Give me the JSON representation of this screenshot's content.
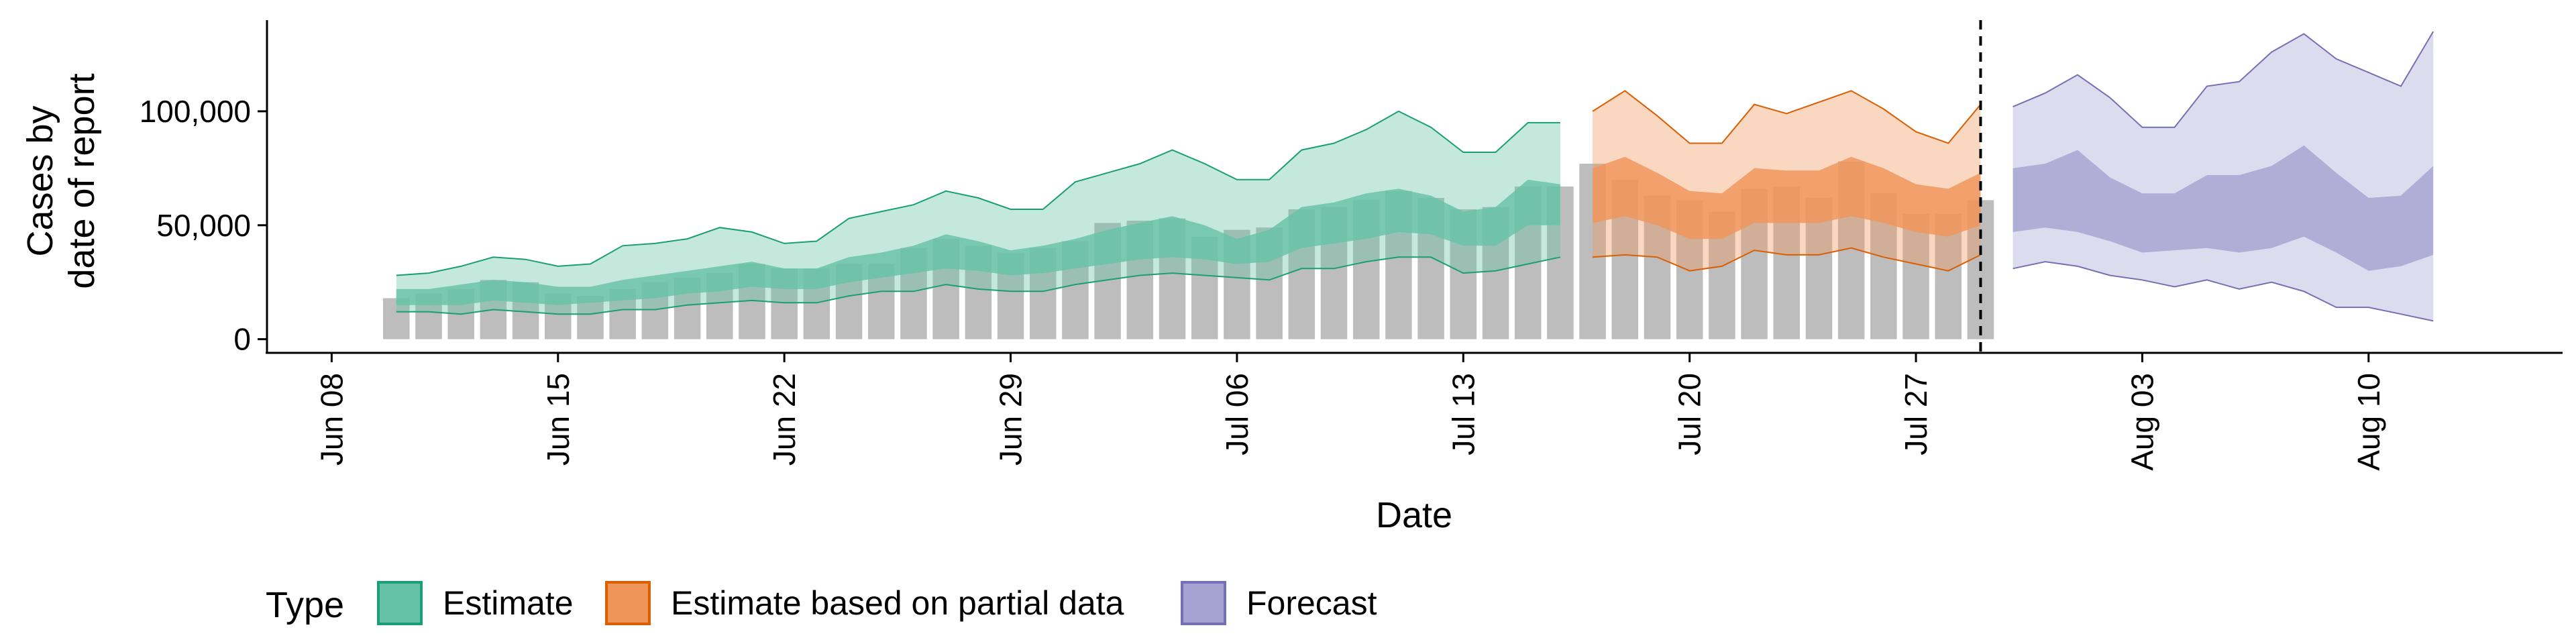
{
  "chart_data": {
    "type": "area",
    "xlabel": "Date",
    "ylabel_lines": [
      "Cases by",
      "date of report"
    ],
    "y_ticks": [
      0,
      50000,
      100000
    ],
    "y_tick_labels": [
      "0",
      "50,000",
      "100,000"
    ],
    "ylim": [
      -6000,
      140000
    ],
    "x_ticks": [
      "2020-06-08",
      "2020-06-15",
      "2020-06-22",
      "2020-06-29",
      "2020-07-06",
      "2020-07-13",
      "2020-07-20",
      "2020-07-27",
      "2020-08-03",
      "2020-08-10"
    ],
    "x_tick_labels": [
      "Jun 08",
      "Jun 15",
      "Jun 22",
      "Jun 29",
      "Jul 06",
      "Jul 13",
      "Jul 20",
      "Jul 27",
      "Aug 03",
      "Aug 10"
    ],
    "xlim": [
      "2020-06-06",
      "2020-08-16"
    ],
    "vline_date": "2020-07-29",
    "grid": false,
    "legend": {
      "title": "Type",
      "position": "bottom",
      "entries": [
        {
          "label": "Estimate",
          "fill": "#66C2A5",
          "stroke": "#1B9E77"
        },
        {
          "label": "Estimate based on partial data",
          "fill": "#F0955A",
          "stroke": "#D95F02"
        },
        {
          "label": "Forecast",
          "fill": "#A6A3D2",
          "stroke": "#7570B3"
        }
      ]
    },
    "colors": {
      "reported": "#BDBDBD",
      "vline": "#000000"
    },
    "reported_cases": {
      "start_date": "2020-06-10",
      "values": [
        18000,
        20000,
        22000,
        26000,
        25000,
        20000,
        19000,
        22000,
        25000,
        27000,
        29000,
        33000,
        31000,
        31000,
        33000,
        33000,
        40000,
        44000,
        41000,
        38000,
        40000,
        43000,
        51000,
        52000,
        53000,
        45000,
        48000,
        49000,
        57000,
        58000,
        61000,
        65000,
        62000,
        57000,
        58000,
        67000,
        67000,
        77000,
        70000,
        63000,
        61000,
        56000,
        66000,
        67000,
        62000,
        78000,
        64000,
        55000,
        55000,
        61000
      ]
    },
    "series": [
      {
        "name": "Estimate",
        "start_date": "2020-06-10",
        "outer_upper": [
          28000,
          29000,
          32000,
          36000,
          35000,
          32000,
          33000,
          41000,
          42000,
          44000,
          49000,
          47000,
          42000,
          43000,
          53000,
          56000,
          59000,
          65000,
          62000,
          57000,
          57000,
          69000,
          73000,
          77000,
          83000,
          77000,
          70000,
          70000,
          83000,
          86000,
          92000,
          100000,
          93000,
          82000,
          82000,
          95000,
          95000
        ],
        "inner_upper": [
          22000,
          22000,
          24000,
          26000,
          25000,
          23000,
          23000,
          26000,
          28000,
          30000,
          32000,
          34000,
          31000,
          31000,
          36000,
          38000,
          41000,
          46000,
          43000,
          39000,
          41000,
          44000,
          48000,
          51000,
          54000,
          50000,
          44000,
          48000,
          58000,
          60000,
          64000,
          66000,
          63000,
          56000,
          58000,
          70000,
          68000
        ],
        "inner_lower": [
          15000,
          15000,
          15000,
          17000,
          16000,
          15000,
          16000,
          17000,
          18000,
          20000,
          21000,
          23000,
          22000,
          22000,
          25000,
          27000,
          29000,
          31000,
          30000,
          28000,
          29000,
          31000,
          33000,
          35000,
          36000,
          35000,
          33000,
          34000,
          40000,
          42000,
          44000,
          47000,
          46000,
          41000,
          41000,
          50000,
          50000
        ],
        "outer_lower": [
          12000,
          12000,
          11000,
          13000,
          12000,
          11000,
          11000,
          13000,
          13000,
          15000,
          16000,
          17000,
          16000,
          16000,
          19000,
          21000,
          21000,
          24000,
          22000,
          21000,
          21000,
          24000,
          26000,
          28000,
          29000,
          28000,
          27000,
          26000,
          31000,
          31000,
          34000,
          36000,
          36000,
          29000,
          30000,
          33000,
          36000
        ]
      },
      {
        "name": "Estimate based on partial data",
        "start_date": "2020-07-17",
        "outer_upper": [
          100000,
          109000,
          98000,
          86000,
          86000,
          103000,
          99000,
          104000,
          109000,
          101000,
          91000,
          86000,
          103000
        ],
        "inner_upper": [
          75000,
          80000,
          73000,
          65000,
          64000,
          75000,
          74000,
          74000,
          80000,
          75000,
          68000,
          66000,
          73000
        ],
        "inner_lower": [
          51000,
          54000,
          50000,
          44000,
          44000,
          51000,
          51000,
          51000,
          54000,
          51000,
          47000,
          45000,
          50000
        ],
        "outer_lower": [
          36000,
          37000,
          36000,
          30000,
          32000,
          39000,
          37000,
          37000,
          40000,
          36000,
          33000,
          30000,
          37000
        ]
      },
      {
        "name": "Forecast",
        "start_date": "2020-07-30",
        "outer_upper": [
          102000,
          108000,
          116000,
          106000,
          93000,
          93000,
          111000,
          113000,
          126000,
          134000,
          123000,
          117000,
          111000,
          135000
        ],
        "inner_upper": [
          75000,
          77000,
          83000,
          71000,
          64000,
          64000,
          72000,
          72000,
          76000,
          85000,
          73000,
          62000,
          63000,
          76000
        ],
        "inner_lower": [
          47000,
          49000,
          47000,
          43000,
          38000,
          39000,
          40000,
          38000,
          40000,
          45000,
          38000,
          30000,
          32000,
          37000
        ],
        "outer_lower": [
          31000,
          34000,
          32000,
          28000,
          26000,
          23000,
          26000,
          22000,
          25000,
          21000,
          14000,
          14000,
          11000,
          8000
        ]
      }
    ]
  }
}
